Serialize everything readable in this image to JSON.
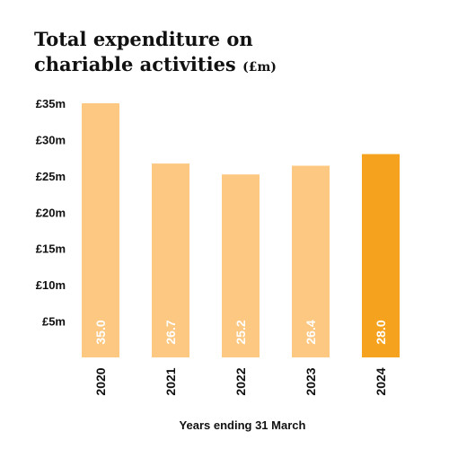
{
  "chart_data": {
    "type": "bar",
    "title_line1": "Total expenditure on",
    "title_line2": "chariable activities",
    "title_unit": "(£m)",
    "xlabel": "Years ending 31 March",
    "ylabel": "",
    "categories": [
      "2020",
      "2021",
      "2022",
      "2023",
      "2024"
    ],
    "values": [
      35.0,
      26.7,
      25.2,
      26.4,
      28.0
    ],
    "value_labels": [
      "35.0",
      "26.7",
      "25.2",
      "26.4",
      "28.0"
    ],
    "y_ticks": [
      5,
      10,
      15,
      20,
      25,
      30,
      35
    ],
    "y_tick_labels": [
      "£5m",
      "£10m",
      "£15m",
      "£20m",
      "£25m",
      "£30m",
      "£35m"
    ],
    "ylim": [
      0,
      35
    ],
    "grid": false,
    "legend": "none",
    "colors": {
      "bar": "#fcc882",
      "highlight": "#f5a31e"
    },
    "highlight_category": "2024"
  }
}
